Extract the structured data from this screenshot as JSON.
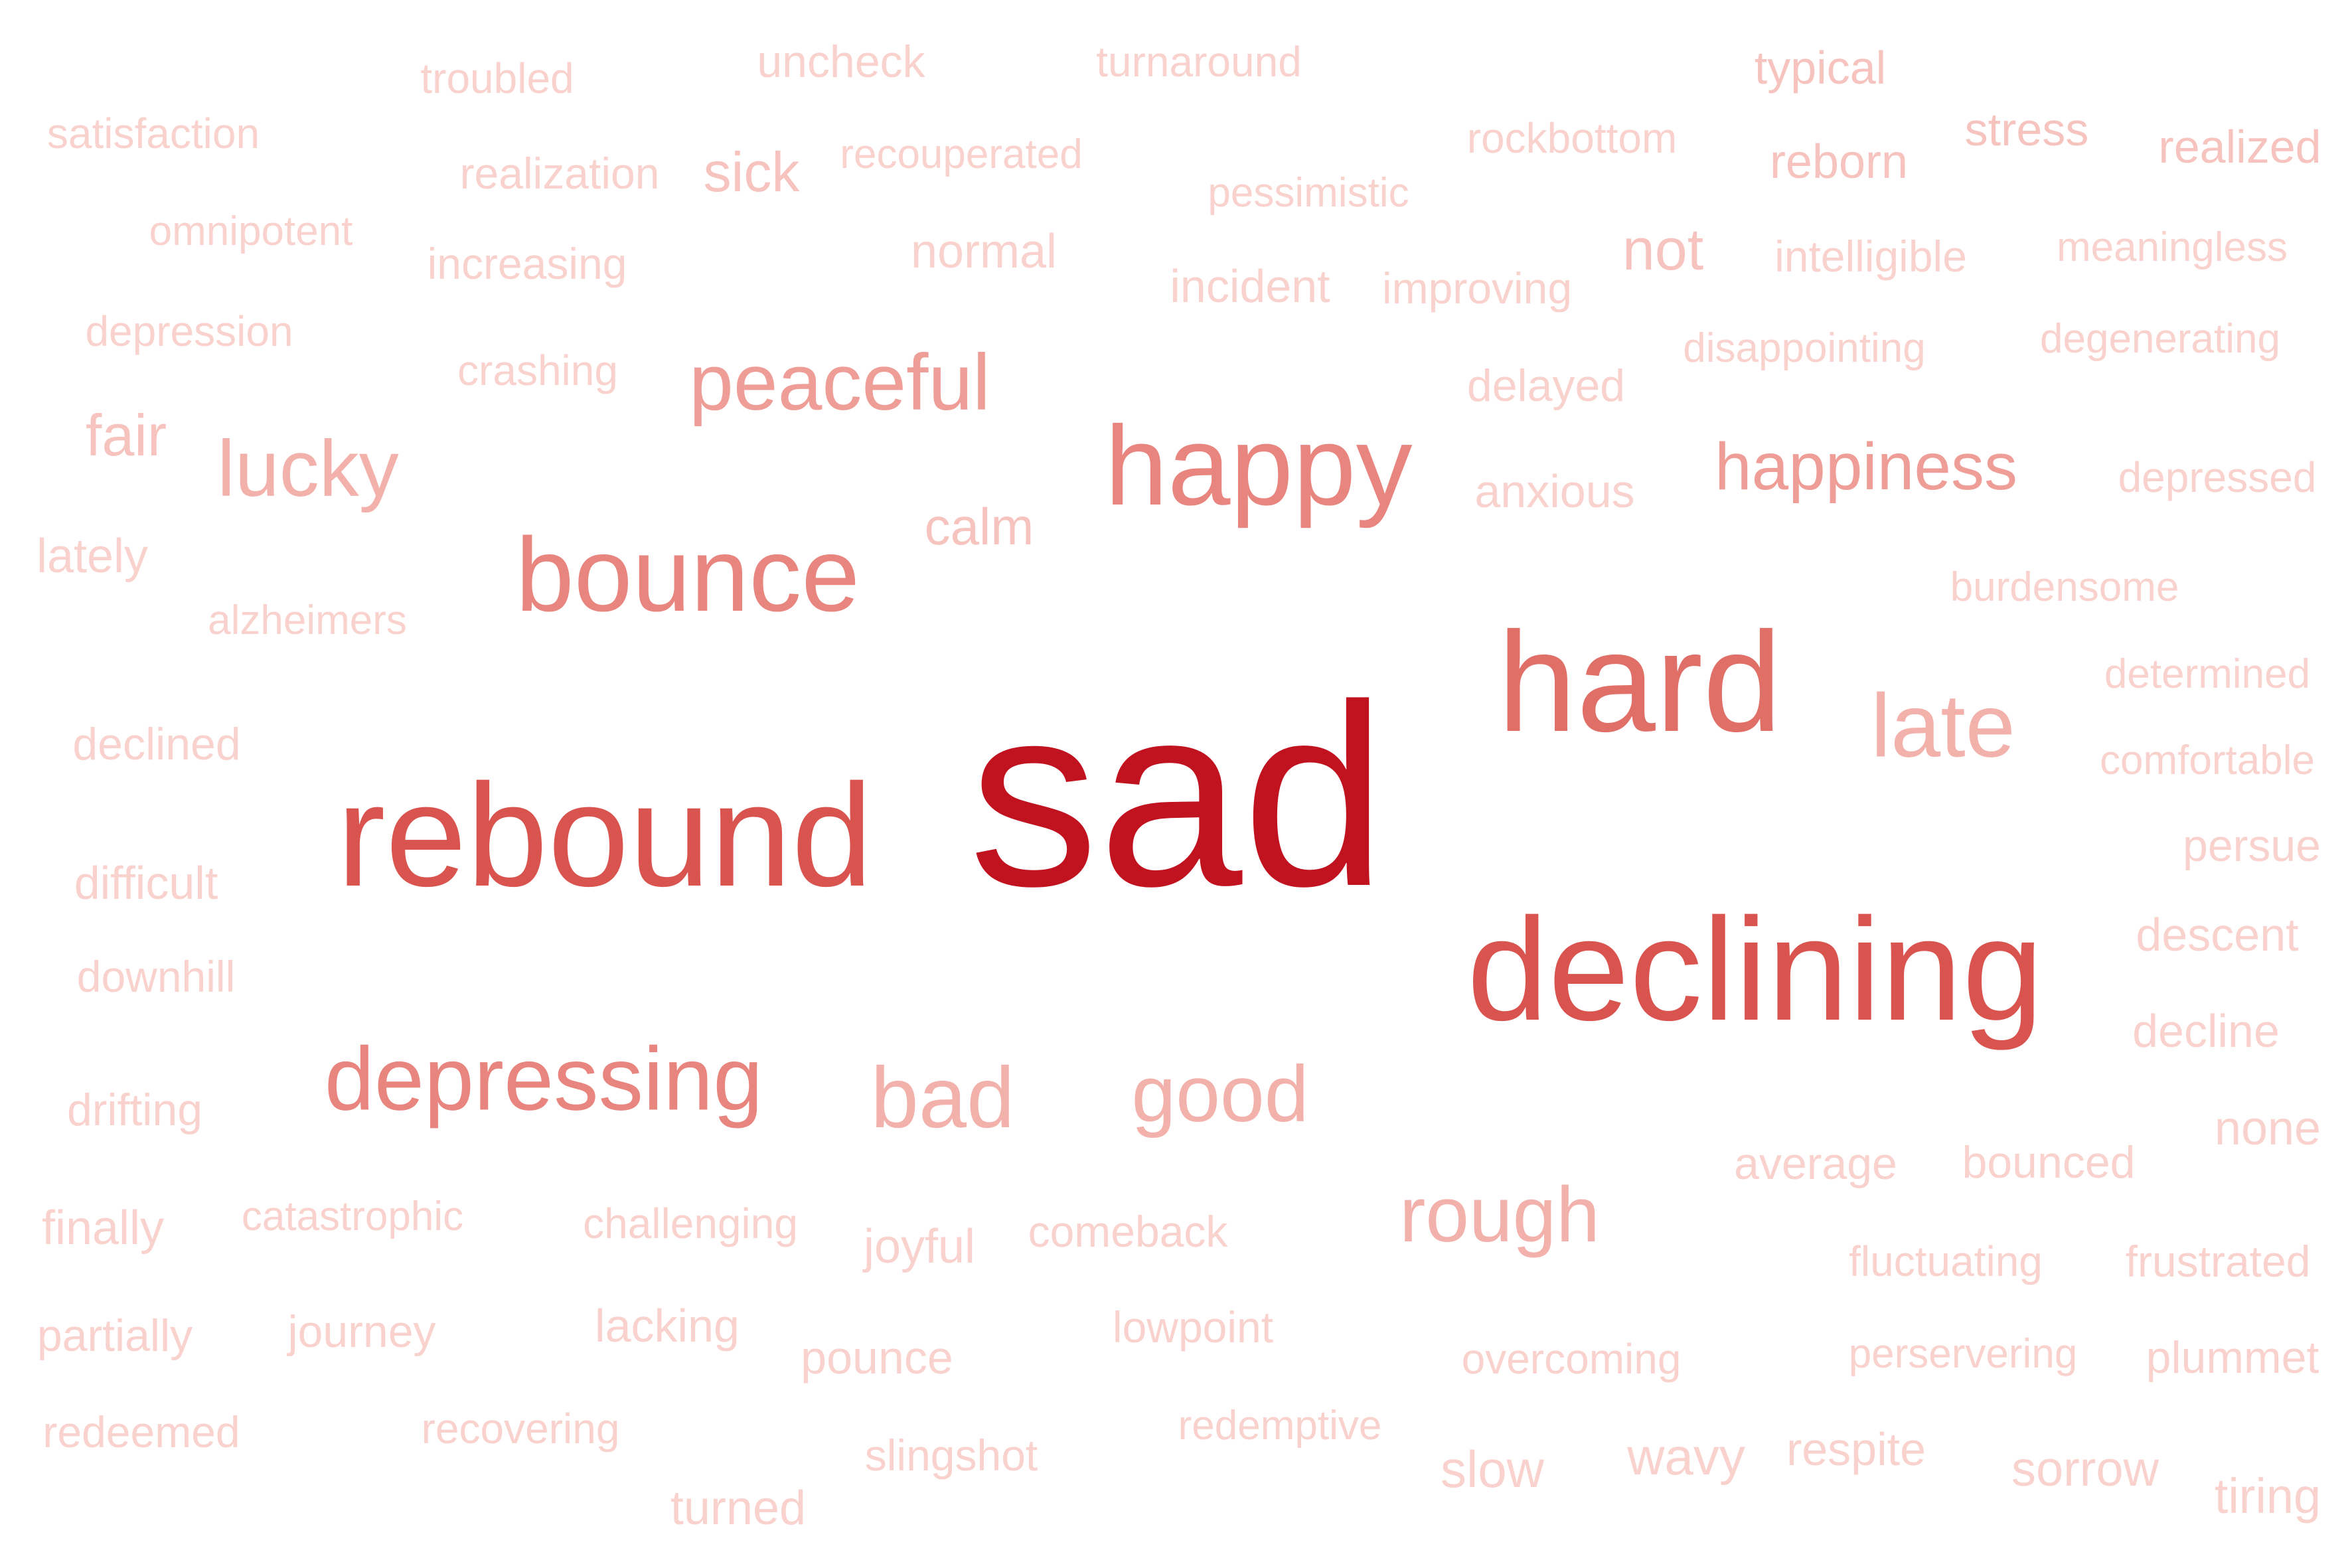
{
  "words": {
    "sad": "sad",
    "rebound": "rebound",
    "declining": "declining",
    "hard": "hard",
    "happy": "happy",
    "bounce": "bounce",
    "depressing": "depressing",
    "late": "late",
    "peaceful": "peaceful",
    "lucky": "lucky",
    "happiness": "happiness",
    "bad": "bad",
    "good": "good",
    "rough": "rough",
    "fair": "fair",
    "not": "not",
    "calm": "calm",
    "sick": "sick",
    "typical": "typical",
    "stress": "stress",
    "reborn": "reborn",
    "realized": "realized",
    "uncheck": "uncheck",
    "turnaround": "turnaround",
    "troubled": "troubled",
    "satisfaction": "satisfaction",
    "realization": "realization",
    "recouperated": "recouperated",
    "rockbottom": "rockbottom",
    "pessimistic": "pessimistic",
    "omnipotent": "omnipotent",
    "increasing": "increasing",
    "normal": "normal",
    "incident": "incident",
    "improving": "improving",
    "intelligible": "intelligible",
    "meaningless": "meaningless",
    "depression": "depression",
    "crashing": "crashing",
    "delayed": "delayed",
    "disappointing": "disappointing",
    "degenerating": "degenerating",
    "anxious": "anxious",
    "depressed": "depressed",
    "lately": "lately",
    "alzheimers": "alzheimers",
    "burdensome": "burdensome",
    "determined": "determined",
    "comfortable": "comfortable",
    "declined": "declined",
    "persue": "persue",
    "difficult": "difficult",
    "descent": "descent",
    "downhill": "downhill",
    "decline": "decline",
    "drifting": "drifting",
    "none": "none",
    "average": "average",
    "bounced": "bounced",
    "finally": "finally",
    "catastrophic": "catastrophic",
    "challenging": "challenging",
    "joyful": "joyful",
    "comeback": "comeback",
    "fluctuating": "fluctuating",
    "frustrated": "frustrated",
    "partially": "partially",
    "journey": "journey",
    "lacking": "lacking",
    "lowpoint": "lowpoint",
    "pounce": "pounce",
    "overcoming": "overcoming",
    "perservering": "perservering",
    "plummet": "plummet",
    "redeemed": "redeemed",
    "recovering": "recovering",
    "redemptive": "redemptive",
    "slingshot": "slingshot",
    "slow": "slow",
    "wavy": "wavy",
    "respite": "respite",
    "sorrow": "sorrow",
    "tiring": "tiring",
    "turned": "turned"
  },
  "colors": {
    "background": "#ffffff",
    "strongest": "#c0131f",
    "faintest": "#f9d2ce"
  }
}
